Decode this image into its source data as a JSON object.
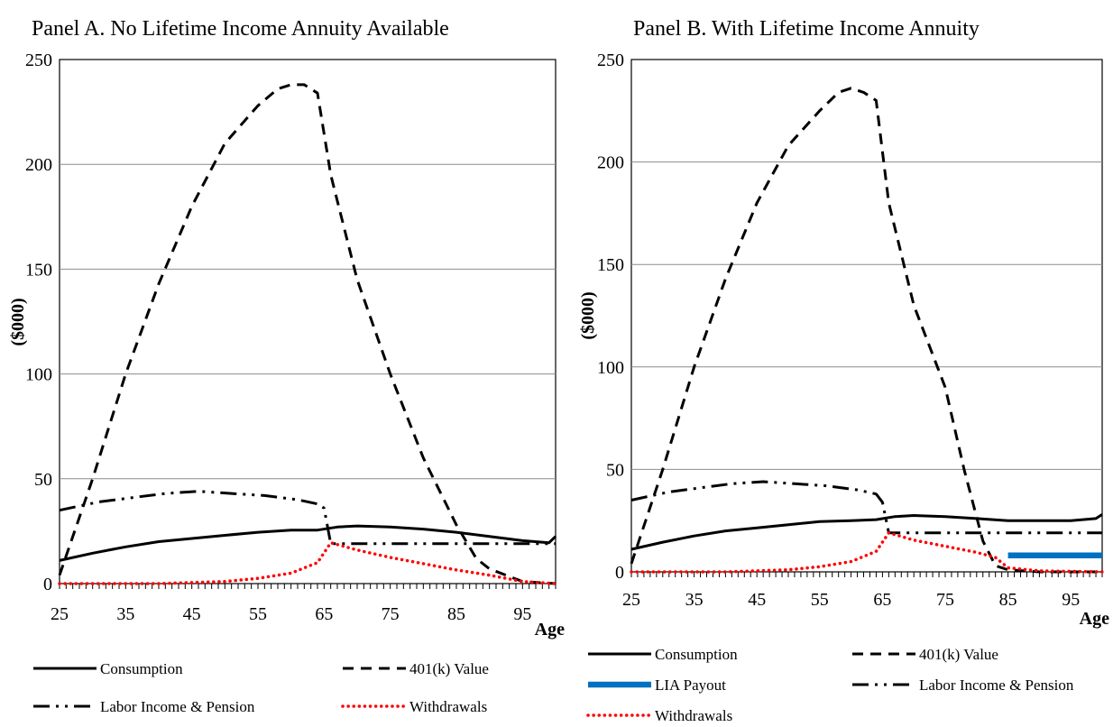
{
  "chart_data": [
    {
      "type": "line",
      "title": "Panel A. No Lifetime Income Annuity Available",
      "xlabel": "Age",
      "ylabel": "($000)",
      "xlim": [
        25,
        100
      ],
      "ylim": [
        0,
        250
      ],
      "x_ticks": [
        "25",
        "35",
        "45",
        "55",
        "65",
        "75",
        "85",
        "95"
      ],
      "y_ticks": [
        "0",
        "50",
        "100",
        "150",
        "200",
        "250"
      ],
      "grid": "horizontal",
      "legend_position": "bottom",
      "series": [
        {
          "name": "Consumption",
          "style": "solid",
          "color": "#000000",
          "points": [
            [
              25,
              11
            ],
            [
              30,
              14.5
            ],
            [
              35,
              17.5
            ],
            [
              40,
              20
            ],
            [
              45,
              21.5
            ],
            [
              50,
              23
            ],
            [
              55,
              24.5
            ],
            [
              60,
              25.5
            ],
            [
              64,
              25.5
            ],
            [
              67,
              27
            ],
            [
              70,
              27.5
            ],
            [
              75,
              27
            ],
            [
              80,
              26
            ],
            [
              85,
              24.5
            ],
            [
              90,
              22.5
            ],
            [
              95,
              20.5
            ],
            [
              99,
              19.5
            ],
            [
              100,
              22.5
            ]
          ]
        },
        {
          "name": "401(k) Value",
          "style": "dashed",
          "color": "#000000",
          "points": [
            [
              25,
              4
            ],
            [
              30,
              50
            ],
            [
              35,
              100
            ],
            [
              40,
              143
            ],
            [
              45,
              180
            ],
            [
              50,
              210
            ],
            [
              55,
              228
            ],
            [
              58,
              236
            ],
            [
              60,
              238
            ],
            [
              62,
              238
            ],
            [
              64,
              234
            ],
            [
              66,
              195
            ],
            [
              70,
              145
            ],
            [
              75,
              100
            ],
            [
              80,
              60
            ],
            [
              85,
              28
            ],
            [
              88,
              12
            ],
            [
              90,
              7
            ],
            [
              95,
              1
            ],
            [
              100,
              0
            ]
          ]
        },
        {
          "name": "Labor Income & Pension",
          "style": "dash-dot-dot",
          "color": "#000000",
          "points": [
            [
              25,
              35
            ],
            [
              28,
              37
            ],
            [
              31,
              39
            ],
            [
              36,
              41
            ],
            [
              41,
              43
            ],
            [
              46,
              44
            ],
            [
              51,
              43
            ],
            [
              56,
              42
            ],
            [
              61,
              40
            ],
            [
              64,
              38
            ],
            [
              65,
              36
            ],
            [
              66,
              19
            ],
            [
              70,
              19
            ],
            [
              80,
              19
            ],
            [
              90,
              19
            ],
            [
              100,
              19
            ]
          ]
        },
        {
          "name": "Withdrawals",
          "style": "dotted",
          "color": "#ff0000",
          "points": [
            [
              25,
              0
            ],
            [
              40,
              0
            ],
            [
              50,
              1
            ],
            [
              55,
              2.5
            ],
            [
              60,
              5
            ],
            [
              64,
              10
            ],
            [
              66,
              19.5
            ],
            [
              70,
              16
            ],
            [
              75,
              12.5
            ],
            [
              80,
              9.5
            ],
            [
              85,
              6.5
            ],
            [
              90,
              4
            ],
            [
              95,
              1
            ],
            [
              100,
              0
            ]
          ]
        }
      ]
    },
    {
      "type": "line",
      "title": "Panel B. With Lifetime Income Annuity",
      "xlabel": "Age",
      "ylabel": "($000)",
      "xlim": [
        25,
        100
      ],
      "ylim": [
        0,
        250
      ],
      "x_ticks": [
        "25",
        "35",
        "45",
        "55",
        "65",
        "75",
        "85",
        "95"
      ],
      "y_ticks": [
        "0",
        "50",
        "100",
        "150",
        "200",
        "250"
      ],
      "grid": "horizontal",
      "legend_position": "bottom",
      "series": [
        {
          "name": "Consumption",
          "style": "solid",
          "color": "#000000",
          "points": [
            [
              25,
              11
            ],
            [
              30,
              14.5
            ],
            [
              35,
              17.5
            ],
            [
              40,
              20
            ],
            [
              45,
              21.5
            ],
            [
              50,
              23
            ],
            [
              55,
              24.5
            ],
            [
              60,
              25
            ],
            [
              64,
              25.5
            ],
            [
              67,
              27
            ],
            [
              70,
              27.5
            ],
            [
              75,
              27
            ],
            [
              80,
              26
            ],
            [
              85,
              25
            ],
            [
              90,
              25
            ],
            [
              95,
              25
            ],
            [
              99,
              26
            ],
            [
              100,
              28
            ]
          ]
        },
        {
          "name": "401(k) Value",
          "style": "dashed",
          "color": "#000000",
          "points": [
            [
              25,
              4
            ],
            [
              30,
              50
            ],
            [
              35,
              100
            ],
            [
              40,
              143
            ],
            [
              45,
              180
            ],
            [
              50,
              208
            ],
            [
              55,
              225
            ],
            [
              58,
              234
            ],
            [
              60,
              236
            ],
            [
              62,
              234
            ],
            [
              64,
              230
            ],
            [
              66,
              180
            ],
            [
              70,
              130
            ],
            [
              75,
              90
            ],
            [
              78,
              50
            ],
            [
              81,
              15
            ],
            [
              83,
              3
            ],
            [
              85,
              1
            ],
            [
              90,
              0
            ],
            [
              100,
              0
            ]
          ]
        },
        {
          "name": "LIA Payout",
          "style": "solid-thick",
          "color": "#0070c0",
          "points": [
            [
              85,
              8
            ],
            [
              100,
              8
            ]
          ]
        },
        {
          "name": "Labor Income & Pension",
          "style": "dash-dot-dot",
          "color": "#000000",
          "points": [
            [
              25,
              35
            ],
            [
              28,
              37
            ],
            [
              31,
              39
            ],
            [
              36,
              41
            ],
            [
              41,
              43
            ],
            [
              46,
              44
            ],
            [
              51,
              43
            ],
            [
              56,
              42
            ],
            [
              61,
              40
            ],
            [
              64,
              38
            ],
            [
              65,
              34
            ],
            [
              66,
              19
            ],
            [
              70,
              19
            ],
            [
              80,
              19
            ],
            [
              90,
              19
            ],
            [
              100,
              19
            ]
          ]
        },
        {
          "name": "Withdrawals",
          "style": "dotted",
          "color": "#ff0000",
          "points": [
            [
              25,
              0
            ],
            [
              40,
              0
            ],
            [
              50,
              1
            ],
            [
              55,
              2.5
            ],
            [
              60,
              5
            ],
            [
              64,
              10
            ],
            [
              66,
              19
            ],
            [
              70,
              15.5
            ],
            [
              75,
              12.5
            ],
            [
              80,
              9.5
            ],
            [
              83,
              7
            ],
            [
              85,
              2
            ],
            [
              90,
              0.5
            ],
            [
              100,
              0
            ]
          ]
        }
      ]
    }
  ]
}
